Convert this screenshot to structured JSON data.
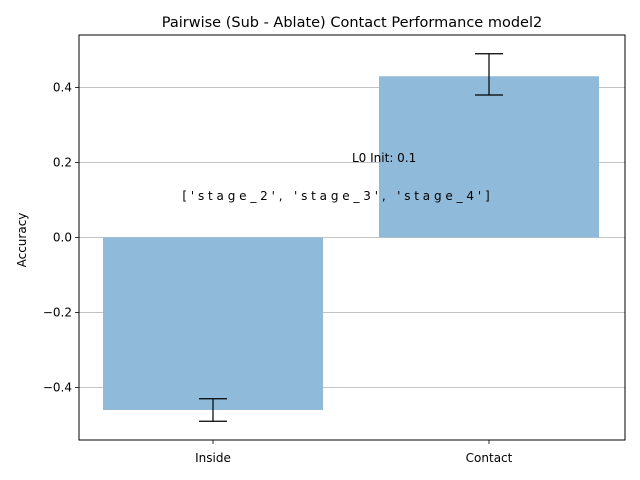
{
  "chart_data": {
    "type": "bar",
    "title": "Pairwise (Sub - Ablate) Contact Performance model2",
    "xlabel": "",
    "ylabel": "Accuracy",
    "categories": [
      "Inside",
      "Contact"
    ],
    "values": [
      -0.46,
      0.43
    ],
    "error_low": [
      -0.49,
      0.38
    ],
    "error_high": [
      -0.43,
      0.49
    ],
    "ylim": [
      -0.54,
      0.54
    ],
    "yticks": [
      -0.4,
      -0.2,
      0.0,
      0.2,
      0.4
    ],
    "ytick_labels": [
      "−0.4",
      "−0.2",
      "0.0",
      "0.2",
      "0.4"
    ],
    "grid": "horizontal",
    "bar_color": "#8fbad9",
    "annotations": [
      "L0 Init: 0.1",
      "[ ' s t a g e _ 2 ' ,   ' s t a g e _ 3 ' ,   ' s t a g e _ 4 ' ]"
    ]
  }
}
